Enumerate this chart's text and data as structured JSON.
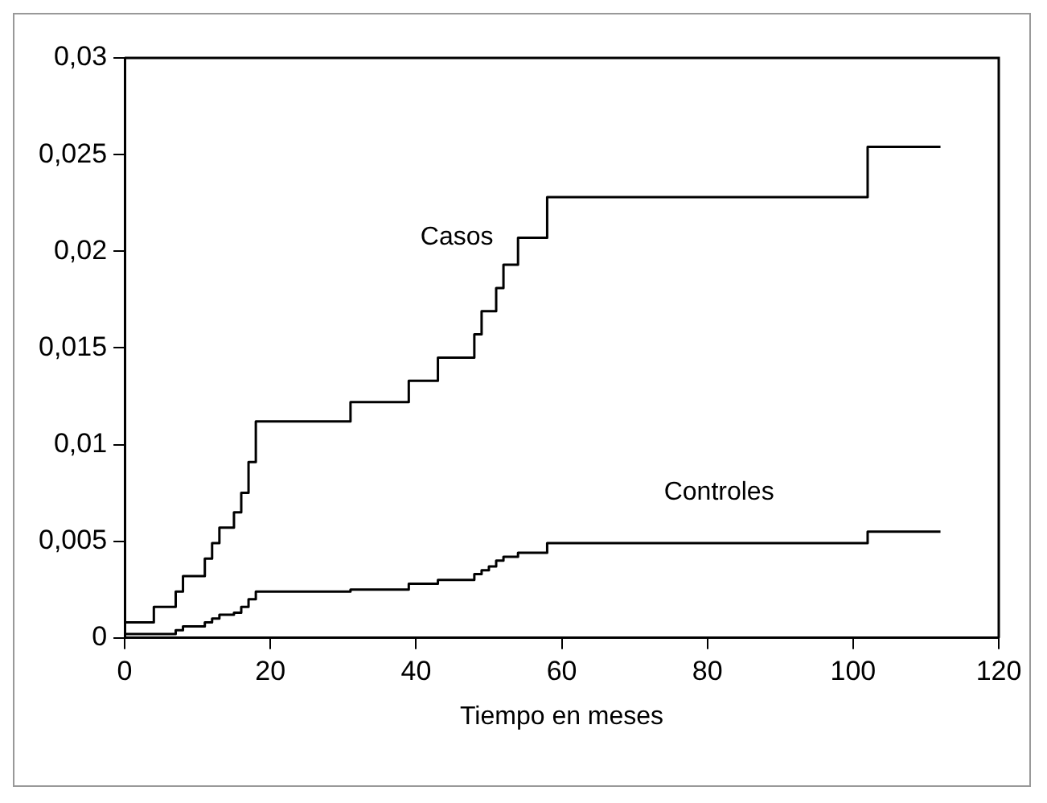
{
  "chart_data": {
    "type": "step",
    "xlabel": "Tiempo en meses",
    "xlim": [
      0,
      120
    ],
    "xticks": [
      0,
      20,
      40,
      60,
      80,
      100,
      120
    ],
    "ylim": [
      0,
      0.03
    ],
    "yticks": [
      0,
      {
        "value": 0.005,
        "label": "0,005"
      },
      {
        "value": 0.01,
        "label": "0,01"
      },
      {
        "value": 0.015,
        "label": "0,015"
      },
      {
        "value": 0.02,
        "label": "0,02"
      },
      {
        "value": 0.025,
        "label": "0,025"
      },
      {
        "value": 0.03,
        "label": "0,03"
      }
    ],
    "grid": false,
    "legend": false,
    "marker": "none",
    "line_style": "solid",
    "series": [
      {
        "name": "Casos",
        "color": "#000000",
        "x": [
          0,
          4,
          7,
          8,
          11,
          12,
          13,
          15,
          16,
          17,
          18,
          31,
          39,
          43,
          48,
          49,
          51,
          52,
          54,
          58,
          102,
          112
        ],
        "values": [
          0.0008,
          0.0016,
          0.0024,
          0.0032,
          0.0041,
          0.0049,
          0.0057,
          0.0065,
          0.0075,
          0.0091,
          0.0112,
          0.0122,
          0.0133,
          0.0145,
          0.0157,
          0.0169,
          0.0181,
          0.0193,
          0.0207,
          0.0228,
          0.0254,
          0.0254
        ]
      },
      {
        "name": "Controles",
        "color": "#000000",
        "x": [
          0,
          7,
          8,
          11,
          12,
          13,
          15,
          16,
          17,
          18,
          31,
          39,
          43,
          48,
          49,
          50,
          51,
          52,
          54,
          58,
          102,
          112
        ],
        "values": [
          0.0002,
          0.0004,
          0.0006,
          0.0008,
          0.001,
          0.0012,
          0.0013,
          0.0016,
          0.002,
          0.0024,
          0.0025,
          0.0028,
          0.003,
          0.0033,
          0.0035,
          0.0037,
          0.004,
          0.0042,
          0.0044,
          0.0049,
          0.0055,
          0.0055
        ]
      }
    ]
  }
}
